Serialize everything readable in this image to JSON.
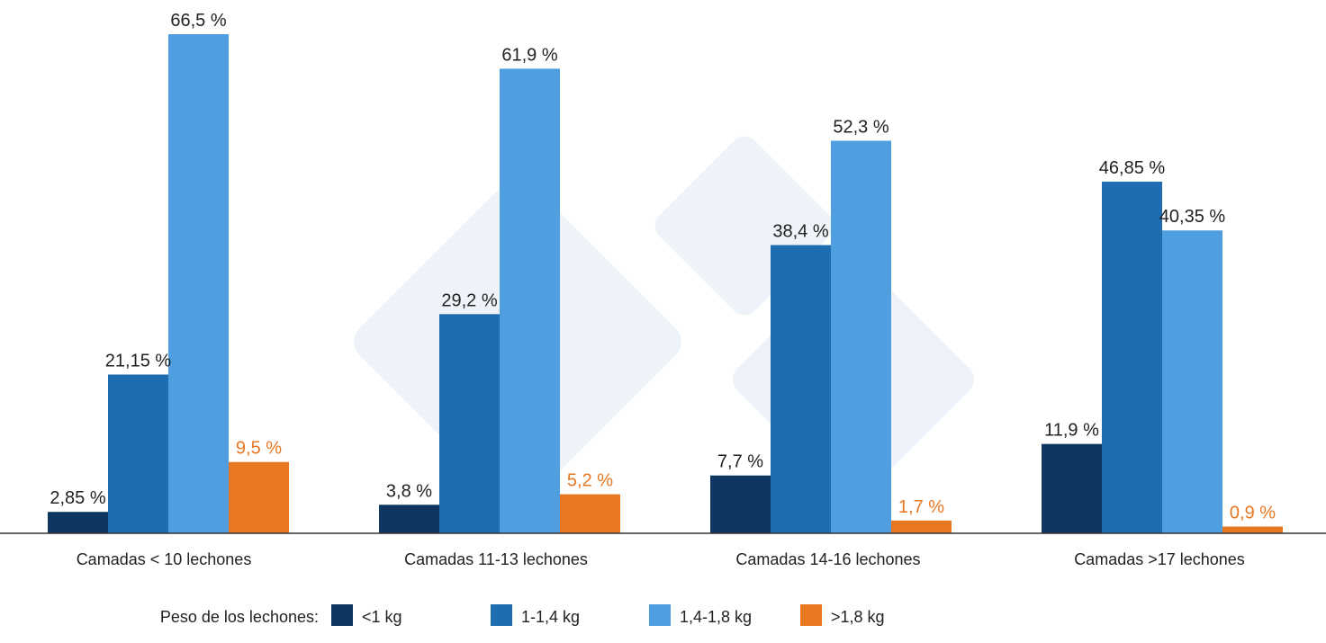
{
  "chart_data": {
    "type": "bar",
    "categories": [
      "Camadas < 10 lechones",
      "Camadas 11-13 lechones",
      "Camadas 14-16 lechones",
      "Camadas >17 lechones"
    ],
    "series": [
      {
        "name": "<1 kg",
        "color": "#0d3660",
        "values": [
          2.85,
          3.8,
          7.7,
          11.9
        ],
        "labels": [
          "2,85 %",
          "3,8 %",
          "7,7 %",
          "11,9 %"
        ]
      },
      {
        "name": "1-1,4 kg",
        "color": "#1f6db1",
        "values": [
          21.15,
          29.2,
          38.4,
          46.85
        ],
        "labels": [
          "21,15 %",
          "29,2 %",
          "38,4 %",
          "46,85 %"
        ]
      },
      {
        "name": "1,4-1,8 kg",
        "color": "#4f9fe0",
        "values": [
          66.5,
          61.9,
          52.3,
          40.35
        ],
        "labels": [
          "66,5 %",
          "61,9 %",
          "52,3 %",
          "40,35 %"
        ]
      },
      {
        "name": ">1,8 kg",
        "color": "#e87722",
        "values": [
          9.5,
          5.2,
          1.7,
          0.9
        ],
        "labels": [
          "9,5 %",
          "5,2 %",
          "1,7 %",
          "0,9 %"
        ]
      }
    ],
    "legend_title": "Peso de los lechones:",
    "label_color_highlight": "#e87722",
    "label_color_default": "#222222",
    "axis_color": "#333333",
    "ylim": [
      0,
      70
    ],
    "grid": false,
    "legend_position": "bottom"
  }
}
